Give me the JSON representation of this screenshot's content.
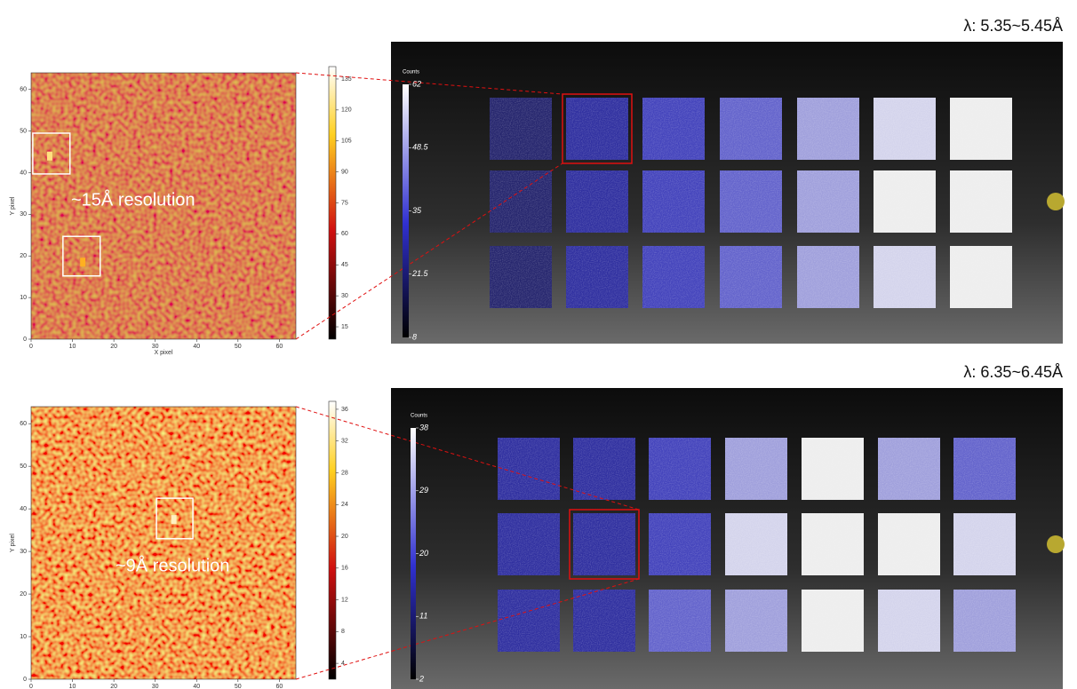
{
  "figures": [
    {
      "wavelength": "λ: 5.35~5.45Å",
      "resolution": "~15Å resolution",
      "heatmap": {
        "xlabel": "X pixel",
        "ylabel": "Y pixel",
        "xlim": [
          0,
          64
        ],
        "ylim": [
          0,
          64
        ],
        "xticks": [
          0,
          10,
          20,
          30,
          40,
          50,
          60
        ],
        "yticks": [
          0,
          10,
          20,
          30,
          40,
          50,
          60
        ],
        "colorbar": {
          "lim": [
            9,
            141
          ],
          "ticks": [
            15,
            30,
            45,
            60,
            75,
            90,
            105,
            120,
            135
          ]
        }
      },
      "detector": {
        "colorbar": {
          "title": "Counts",
          "lim": [
            8,
            62
          ],
          "ticks": [
            8,
            21.5,
            35,
            48.5,
            62
          ]
        }
      }
    },
    {
      "wavelength": "λ: 6.35~6.45Å",
      "resolution": "~9Å resolution",
      "heatmap": {
        "xlabel": "X pixel",
        "ylabel": "Y pixel",
        "xlim": [
          0,
          64
        ],
        "ylim": [
          0,
          64
        ],
        "xticks": [
          0,
          10,
          20,
          30,
          40,
          50,
          60
        ],
        "yticks": [
          0,
          10,
          20,
          30,
          40,
          50,
          60
        ],
        "colorbar": {
          "lim": [
            2,
            37
          ],
          "ticks": [
            4,
            8,
            12,
            16,
            20,
            24,
            28,
            32,
            36
          ]
        }
      },
      "detector": {
        "colorbar": {
          "title": "Counts",
          "lim": [
            2,
            38
          ],
          "ticks": [
            2,
            11,
            20,
            29,
            38
          ]
        }
      }
    }
  ]
}
